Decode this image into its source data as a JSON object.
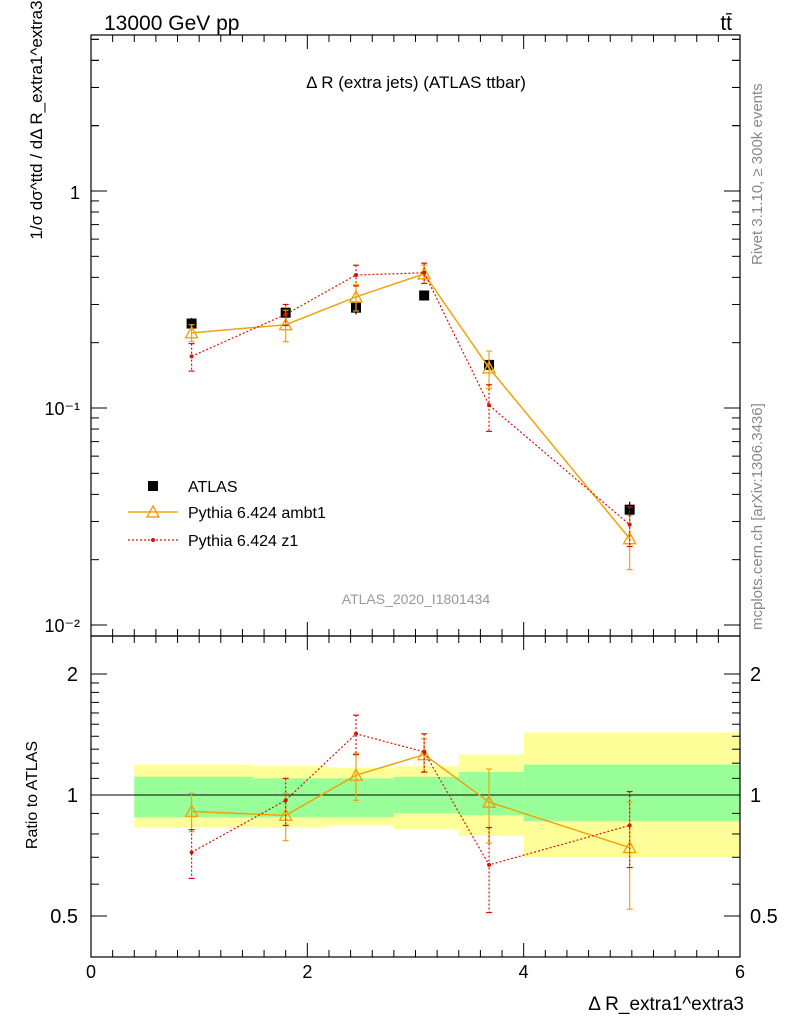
{
  "header": {
    "left": "13000 GeV pp",
    "right": "tt̄"
  },
  "side_labels": {
    "rivet": "Rivet 3.1.10, ≥ 300k events",
    "mcplots": "mcplots.cern.ch [arXiv:1306.3436]"
  },
  "colors": {
    "data": "#000000",
    "ambt1": "#f0a30a",
    "z1": "#dd1100",
    "band_inner": "#99ff99",
    "band_outer": "#ffff99"
  },
  "chart_data": [
    {
      "type": "line",
      "panel": "main",
      "title": "Δ R (extra jets) (ATLAS ttbar)",
      "watermark": "ATLAS_2020_I1801434",
      "ylabel": "1/σ dσ^ttd / dΔ R_extra1^extra3",
      "yscale": "log",
      "ylim": [
        0.01,
        5
      ],
      "xlim": [
        0,
        6
      ],
      "y_tick_labels": [
        "1",
        "10⁻¹",
        "10⁻²"
      ],
      "legend_position": "lower-left",
      "series": [
        {
          "name": "ATLAS",
          "kind": "data",
          "x": [
            0.93,
            1.8,
            2.45,
            3.08,
            3.68,
            4.98
          ],
          "y": [
            0.245,
            0.275,
            0.29,
            0.33,
            0.158,
            0.034
          ],
          "err": [
            0.015,
            0.015,
            0.02,
            0.015,
            0.01,
            0.003
          ]
        },
        {
          "name": "Pythia 6.424 ambt1",
          "kind": "mc",
          "x": [
            0.93,
            1.8,
            2.45,
            3.08,
            3.68,
            4.98
          ],
          "y": [
            0.222,
            0.242,
            0.325,
            0.415,
            0.153,
            0.025
          ],
          "err": [
            0.02,
            0.04,
            0.045,
            0.04,
            0.03,
            0.007
          ]
        },
        {
          "name": "Pythia 6.424 z1",
          "kind": "mc",
          "x": [
            0.93,
            1.8,
            2.45,
            3.08,
            3.68,
            4.98
          ],
          "y": [
            0.173,
            0.27,
            0.41,
            0.42,
            0.103,
            0.029
          ],
          "err": [
            0.025,
            0.03,
            0.045,
            0.045,
            0.025,
            0.006
          ]
        }
      ]
    },
    {
      "type": "line",
      "panel": "ratio",
      "ylabel": "Ratio to ATLAS",
      "xlabel": "Δ R_extra1^extra3",
      "xlim": [
        0,
        6
      ],
      "ylim": [
        0.42,
        2.45
      ],
      "x_ticks": [
        0,
        2,
        4,
        6
      ],
      "y_ticks": [
        0.5,
        1,
        2
      ],
      "reference": 1,
      "bands": [
        {
          "x0": 0.4,
          "x1": 1.5,
          "inner": [
            0.88,
            1.11
          ],
          "outer": [
            0.83,
            1.19
          ]
        },
        {
          "x0": 1.5,
          "x1": 2.2,
          "inner": [
            0.88,
            1.1
          ],
          "outer": [
            0.83,
            1.18
          ]
        },
        {
          "x0": 2.2,
          "x1": 2.8,
          "inner": [
            0.88,
            1.1
          ],
          "outer": [
            0.84,
            1.17
          ]
        },
        {
          "x0": 2.8,
          "x1": 3.4,
          "inner": [
            0.9,
            1.11
          ],
          "outer": [
            0.82,
            1.18
          ]
        },
        {
          "x0": 3.4,
          "x1": 4.0,
          "inner": [
            0.89,
            1.14
          ],
          "outer": [
            0.79,
            1.26
          ]
        },
        {
          "x0": 4.0,
          "x1": 6.0,
          "inner": [
            0.86,
            1.19
          ],
          "outer": [
            0.7,
            1.43
          ]
        }
      ],
      "series": [
        {
          "name": "Pythia 6.424 ambt1",
          "x": [
            0.93,
            1.8,
            2.45,
            3.08,
            3.68,
            4.98
          ],
          "y": [
            0.91,
            0.89,
            1.12,
            1.26,
            0.96,
            0.74
          ],
          "err": [
            0.1,
            0.12,
            0.15,
            0.12,
            0.2,
            0.22
          ]
        },
        {
          "name": "Pythia 6.424 z1",
          "x": [
            0.93,
            1.8,
            2.45,
            3.08,
            3.68,
            4.98
          ],
          "y": [
            0.72,
            0.97,
            1.42,
            1.28,
            0.67,
            0.84
          ],
          "err": [
            0.1,
            0.13,
            0.16,
            0.14,
            0.16,
            0.18
          ]
        }
      ]
    }
  ]
}
